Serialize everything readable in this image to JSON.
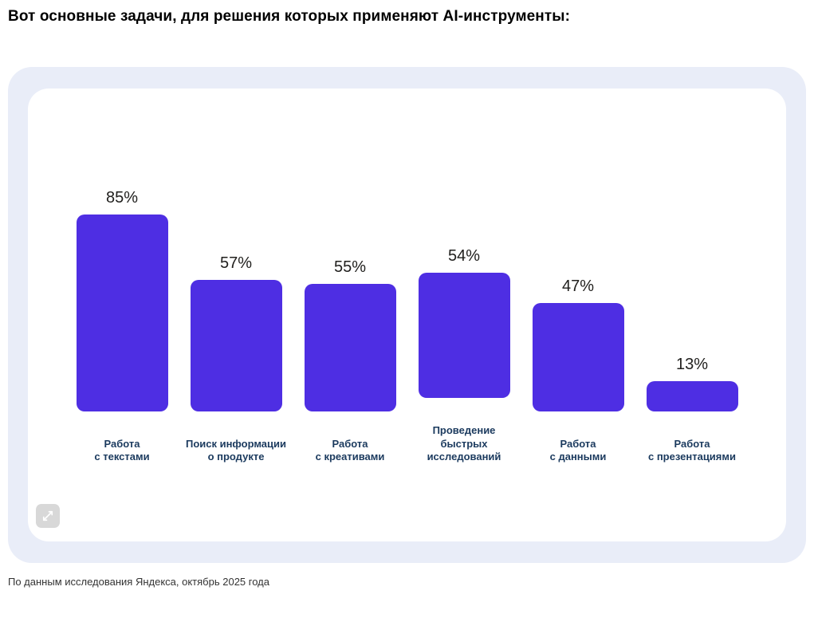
{
  "page": {
    "heading": "Вот основные задачи, для решения которых применяют AI-инструменты:",
    "source_note": "По данным исследования Яндекса, октябрь 2025 года"
  },
  "colors": {
    "bar": "#4e2ee3",
    "card_bg": "#e9edf8",
    "inner_bg": "#ffffff",
    "category_label": "#1b3a5e",
    "value_label": "#21201e"
  },
  "chart_data": {
    "type": "bar",
    "categories": [
      "Работа\nс текстами",
      "Поиск информации\nо продукте",
      "Работа\nс креативами",
      "Проведение\nбыстрых\nисследований",
      "Работа\nс данными",
      "Работа\nс презентациями"
    ],
    "values": [
      85,
      57,
      55,
      54,
      47,
      13
    ],
    "value_labels": [
      "85%",
      "57%",
      "55%",
      "54%",
      "47%",
      "13%"
    ],
    "title": "Вот основные задачи, для решения которых применяют AI-инструменты",
    "xlabel": "",
    "ylabel": "",
    "ylim": [
      0,
      100
    ],
    "grid": false,
    "legend": false,
    "source": "По данным исследования Яндекса, октябрь 2025 года"
  },
  "controls": {
    "expand_button": "expand"
  }
}
